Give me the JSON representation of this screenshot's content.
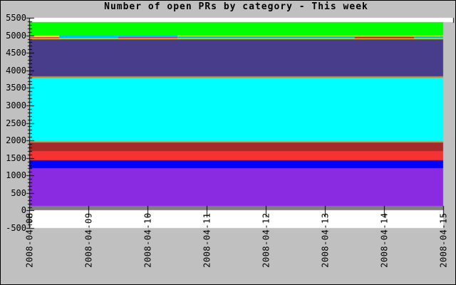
{
  "window": {
    "figure_background": "#c0c0c0",
    "border_color": "#000000"
  },
  "chart_data": {
    "type": "area",
    "stacked": true,
    "title": "Number of open PRs by category - This week",
    "legend": "none",
    "grid": false,
    "plot_background": "#ffffff",
    "axis_color": "#000000",
    "ylim": [
      -500,
      5500
    ],
    "y_tick_step": 500,
    "y_minor_step": 100,
    "y_tick_labels": [
      "-500",
      "0",
      "500",
      "1000",
      "1500",
      "2000",
      "2500",
      "3000",
      "3500",
      "4000",
      "4500",
      "5000",
      "5500"
    ],
    "x_range_days": [
      0,
      7
    ],
    "x_tick_labels": [
      "2008-04-08",
      "2008-04-09",
      "2008-04-10",
      "2008-04-11",
      "2008-04-12",
      "2008-04-13",
      "2008-04-14",
      "2008-04-15"
    ],
    "breakpoints_days": [
      0,
      0.5,
      1.5,
      2.5,
      5.5,
      6.5,
      7
    ],
    "series_note": "stacked bottom-to-top; values are band thickness (open PR count) per segment between breakpoints",
    "series": [
      {
        "name": "gray-band",
        "color": "#7f7f7f",
        "values": [
          130,
          130,
          130,
          130,
          130,
          130
        ]
      },
      {
        "name": "purple-band",
        "color": "#8a2be2",
        "values": [
          1070,
          1070,
          1070,
          1070,
          1070,
          1070
        ]
      },
      {
        "name": "blue-band",
        "color": "#0000ff",
        "values": [
          240,
          240,
          240,
          240,
          240,
          240
        ]
      },
      {
        "name": "red-band",
        "color": "#f53333",
        "values": [
          260,
          260,
          260,
          260,
          260,
          260
        ]
      },
      {
        "name": "dark-red-band",
        "color": "#a52a2a",
        "values": [
          250,
          250,
          250,
          250,
          250,
          250
        ]
      },
      {
        "name": "tan-line",
        "color": "#c49a5a",
        "values": [
          40,
          40,
          40,
          40,
          40,
          40
        ]
      },
      {
        "name": "cyan-band",
        "color": "#00ffff",
        "values": [
          1800,
          1800,
          1800,
          1800,
          1800,
          1800
        ]
      },
      {
        "name": "orange-line",
        "color": "#cf8a10",
        "values": [
          45,
          45,
          45,
          45,
          45,
          45
        ]
      },
      {
        "name": "dark-slate-band",
        "color": "#483d8b",
        "values": [
          1045,
          1045,
          1045,
          1045,
          1045,
          1045
        ]
      },
      {
        "name": "yellow-line",
        "color": "#ffff00",
        "values": [
          40,
          40,
          40,
          40,
          40,
          40
        ]
      },
      {
        "name": "magenta-line",
        "color": "#e8289b",
        "values": [
          40,
          0,
          30,
          0,
          0,
          0
        ]
      },
      {
        "name": "crimson-line",
        "color": "#dc143c",
        "values": [
          0,
          0,
          0,
          0,
          30,
          0
        ]
      },
      {
        "name": "sky-blue-line",
        "color": "#00bfff",
        "values": [
          0,
          80,
          50,
          60,
          30,
          60
        ]
      },
      {
        "name": "yellow-top-line",
        "color": "#ffff00",
        "values": [
          40,
          0,
          0,
          20,
          20,
          20
        ]
      },
      {
        "name": "green-band",
        "color": "#00ff00",
        "values": [
          380,
          380,
          380,
          380,
          380,
          380
        ]
      }
    ]
  }
}
